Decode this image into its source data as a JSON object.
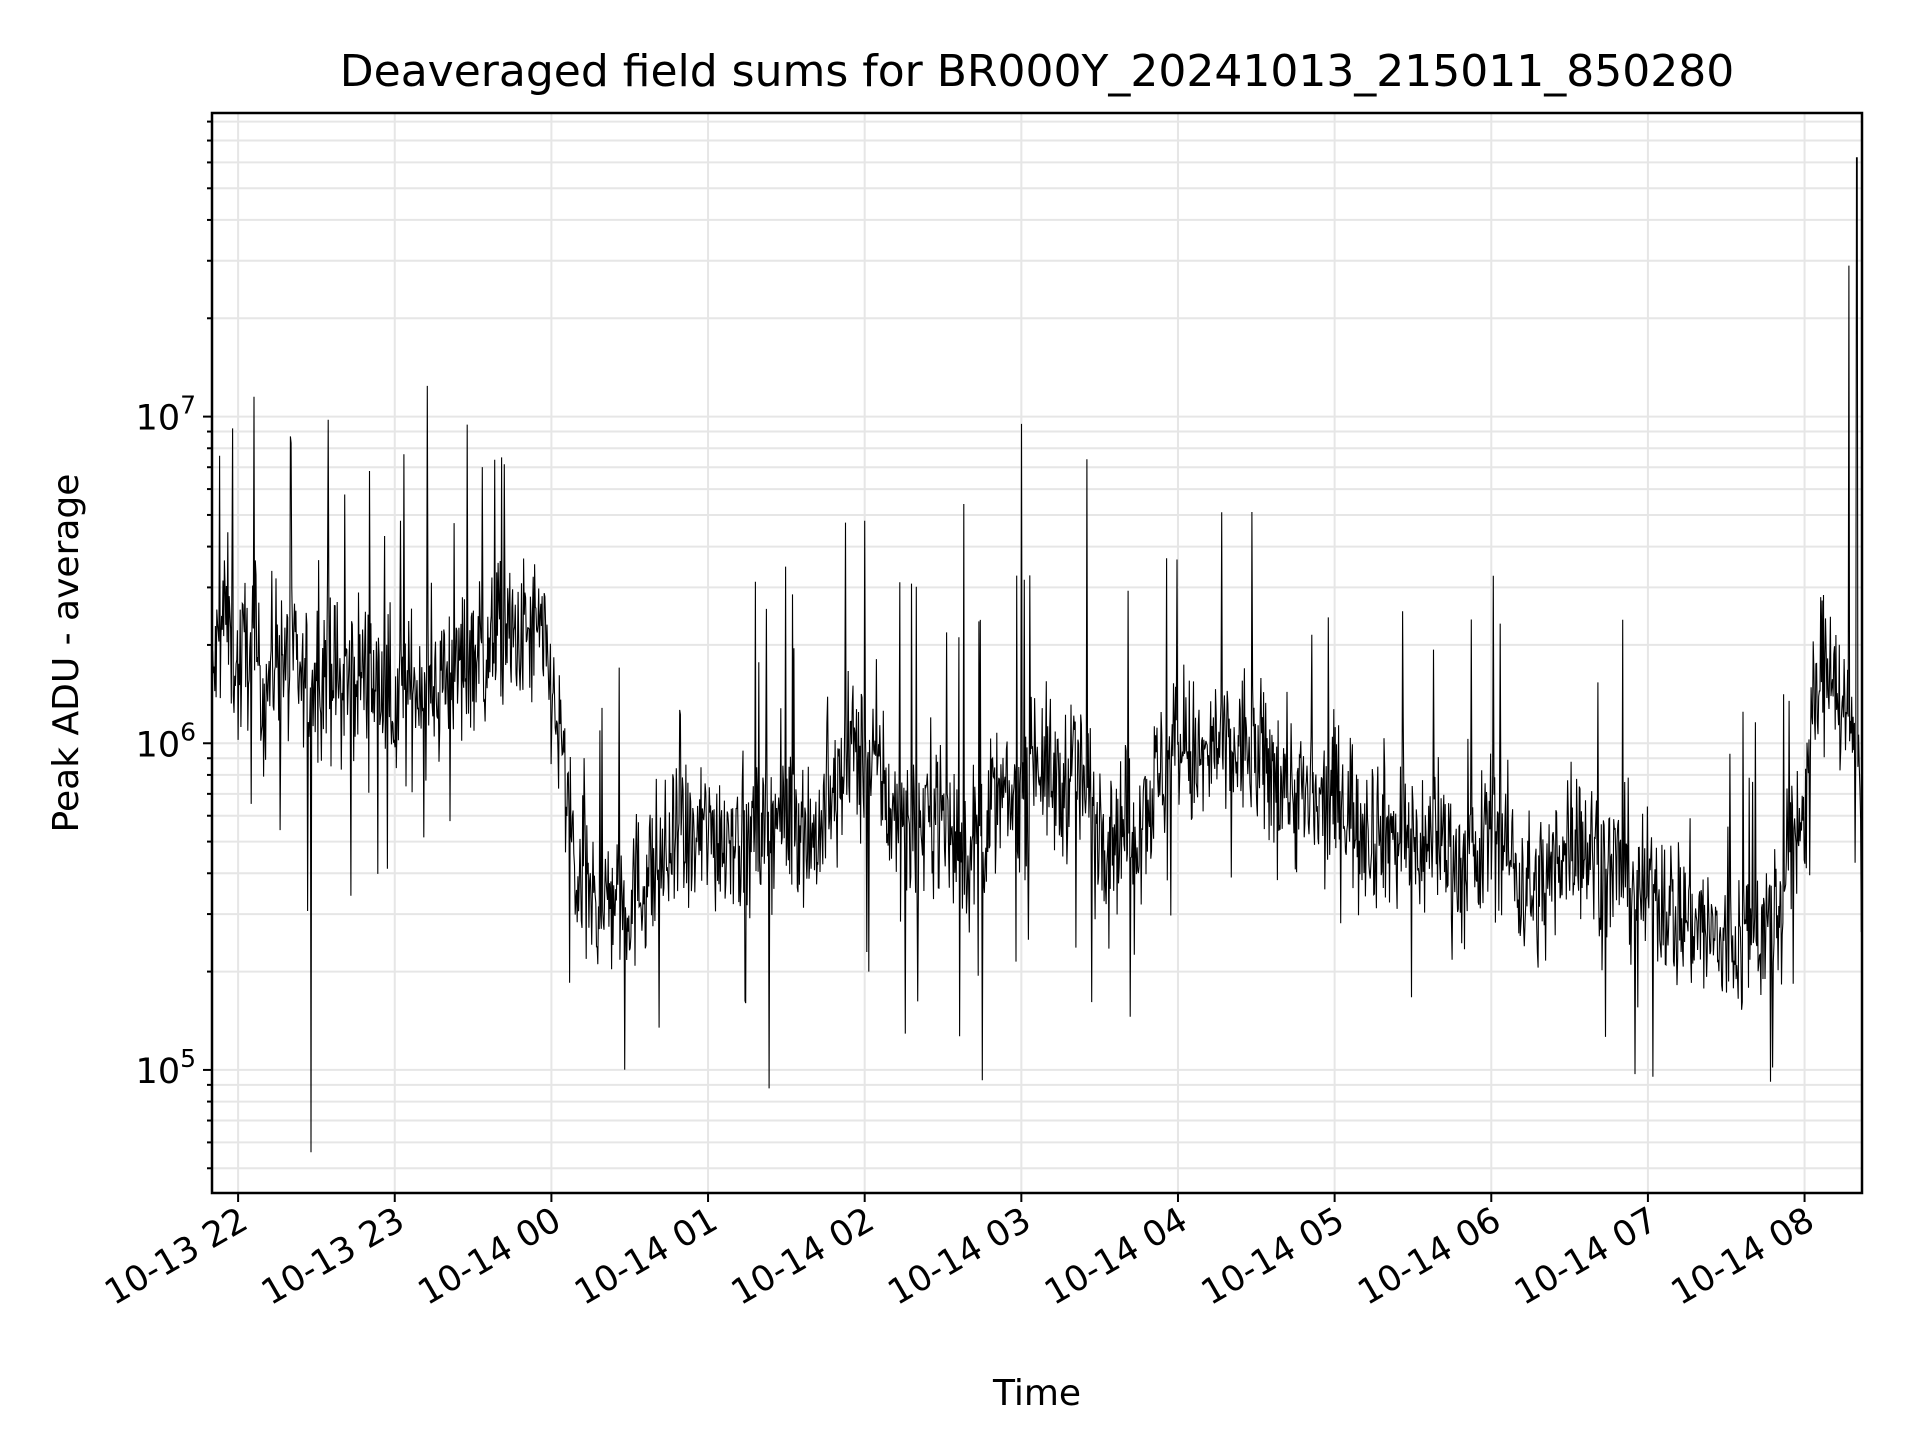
{
  "chart_data": {
    "type": "line",
    "title": "Deaveraged field sums for BR000Y_20241013_215011_850280",
    "xlabel": "Time",
    "ylabel": "Peak ADU - average",
    "y_scale": "log",
    "x_range": [
      "2024-10-13 21:50",
      "2024-10-14 08:22"
    ],
    "ylim": [
      42000,
      85000000
    ],
    "grid": "on (major and minor)",
    "x_ticks": [
      {
        "value": "2024-10-13 22:00",
        "label": "10-13 22"
      },
      {
        "value": "2024-10-13 23:00",
        "label": "10-13 23"
      },
      {
        "value": "2024-10-14 00:00",
        "label": "10-14 00"
      },
      {
        "value": "2024-10-14 01:00",
        "label": "10-14 01"
      },
      {
        "value": "2024-10-14 02:00",
        "label": "10-14 02"
      },
      {
        "value": "2024-10-14 03:00",
        "label": "10-14 03"
      },
      {
        "value": "2024-10-14 04:00",
        "label": "10-14 04"
      },
      {
        "value": "2024-10-14 05:00",
        "label": "10-14 05"
      },
      {
        "value": "2024-10-14 06:00",
        "label": "10-14 06"
      },
      {
        "value": "2024-10-14 07:00",
        "label": "10-14 07"
      },
      {
        "value": "2024-10-14 08:00",
        "label": "10-14 08"
      }
    ],
    "y_ticks": [
      {
        "value": 100000,
        "base": "10",
        "exp": "5"
      },
      {
        "value": 1000000,
        "base": "10",
        "exp": "6"
      },
      {
        "value": 10000000,
        "base": "10",
        "exp": "7"
      }
    ],
    "series": [
      {
        "color": "#000000",
        "x": [
          "2024-10-13 21:50",
          "2024-10-13 21:55",
          "2024-10-13 22:00",
          "2024-10-13 22:05",
          "2024-10-13 22:10",
          "2024-10-13 22:15",
          "2024-10-13 22:20",
          "2024-10-13 22:25",
          "2024-10-13 22:30",
          "2024-10-13 22:35",
          "2024-10-13 22:40",
          "2024-10-13 22:45",
          "2024-10-13 22:50",
          "2024-10-13 22:55",
          "2024-10-13 23:00",
          "2024-10-13 23:05",
          "2024-10-13 23:10",
          "2024-10-13 23:15",
          "2024-10-13 23:20",
          "2024-10-13 23:25",
          "2024-10-13 23:30",
          "2024-10-13 23:35",
          "2024-10-13 23:40",
          "2024-10-13 23:45",
          "2024-10-13 23:50",
          "2024-10-13 23:55",
          "2024-10-14 00:00",
          "2024-10-14 00:05",
          "2024-10-14 00:10",
          "2024-10-14 00:15",
          "2024-10-14 00:20",
          "2024-10-14 00:25",
          "2024-10-14 00:30",
          "2024-10-14 00:35",
          "2024-10-14 00:40",
          "2024-10-14 00:45",
          "2024-10-14 00:50",
          "2024-10-14 00:55",
          "2024-10-14 01:00",
          "2024-10-14 01:05",
          "2024-10-14 01:10",
          "2024-10-14 01:15",
          "2024-10-14 01:20",
          "2024-10-14 01:25",
          "2024-10-14 01:30",
          "2024-10-14 01:35",
          "2024-10-14 01:40",
          "2024-10-14 01:45",
          "2024-10-14 01:50",
          "2024-10-14 01:55",
          "2024-10-14 02:00",
          "2024-10-14 02:05",
          "2024-10-14 02:10",
          "2024-10-14 02:15",
          "2024-10-14 02:20",
          "2024-10-14 02:25",
          "2024-10-14 02:30",
          "2024-10-14 02:35",
          "2024-10-14 02:40",
          "2024-10-14 02:45",
          "2024-10-14 02:50",
          "2024-10-14 02:55",
          "2024-10-14 03:00",
          "2024-10-14 03:05",
          "2024-10-14 03:10",
          "2024-10-14 03:15",
          "2024-10-14 03:20",
          "2024-10-14 03:25",
          "2024-10-14 03:30",
          "2024-10-14 03:35",
          "2024-10-14 03:40",
          "2024-10-14 03:45",
          "2024-10-14 03:50",
          "2024-10-14 03:55",
          "2024-10-14 04:00",
          "2024-10-14 04:05",
          "2024-10-14 04:10",
          "2024-10-14 04:15",
          "2024-10-14 04:20",
          "2024-10-14 04:25",
          "2024-10-14 04:30",
          "2024-10-14 04:35",
          "2024-10-14 04:40",
          "2024-10-14 04:45",
          "2024-10-14 04:50",
          "2024-10-14 04:55",
          "2024-10-14 05:00",
          "2024-10-14 05:05",
          "2024-10-14 05:10",
          "2024-10-14 05:15",
          "2024-10-14 05:20",
          "2024-10-14 05:25",
          "2024-10-14 05:30",
          "2024-10-14 05:35",
          "2024-10-14 05:40",
          "2024-10-14 05:45",
          "2024-10-14 05:50",
          "2024-10-14 05:55",
          "2024-10-14 06:00",
          "2024-10-14 06:05",
          "2024-10-14 06:10",
          "2024-10-14 06:15",
          "2024-10-14 06:20",
          "2024-10-14 06:25",
          "2024-10-14 06:30",
          "2024-10-14 06:35",
          "2024-10-14 06:40",
          "2024-10-14 06:45",
          "2024-10-14 06:50",
          "2024-10-14 06:55",
          "2024-10-14 07:00",
          "2024-10-14 07:05",
          "2024-10-14 07:10",
          "2024-10-14 07:15",
          "2024-10-14 07:20",
          "2024-10-14 07:25",
          "2024-10-14 07:30",
          "2024-10-14 07:35",
          "2024-10-14 07:40",
          "2024-10-14 07:45",
          "2024-10-14 07:50",
          "2024-10-14 07:55",
          "2024-10-14 08:00",
          "2024-10-14 08:05",
          "2024-10-14 08:10",
          "2024-10-14 08:15",
          "2024-10-14 08:20"
        ],
        "y": [
          1500000,
          2600000,
          1600000,
          2200000,
          1400000,
          2000000,
          1700000,
          1500000,
          1600000,
          1800000,
          1400000,
          1700000,
          1600000,
          1500000,
          1300000,
          1400000,
          1600000,
          1500000,
          1600000,
          1700000,
          2000000,
          1800000,
          2200000,
          2000000,
          2100000,
          2200000,
          1500000,
          800000,
          360000,
          330000,
          320000,
          350000,
          330000,
          380000,
          420000,
          450000,
          500000,
          480000,
          550000,
          520000,
          560000,
          480000,
          520000,
          600000,
          580000,
          620000,
          500000,
          600000,
          700000,
          1000000,
          800000,
          900000,
          600000,
          550000,
          500000,
          700000,
          600000,
          500000,
          450000,
          550000,
          650000,
          650000,
          700000,
          1000000,
          800000,
          700000,
          900000,
          700000,
          600000,
          550000,
          550000,
          600000,
          700000,
          850000,
          1000000,
          900000,
          850000,
          1000000,
          900000,
          1000000,
          900000,
          800000,
          850000,
          700000,
          650000,
          600000,
          700000,
          650000,
          600000,
          550000,
          550000,
          500000,
          500000,
          480000,
          550000,
          450000,
          400000,
          420000,
          600000,
          500000,
          400000,
          350000,
          350000,
          450000,
          550000,
          500000,
          450000,
          400000,
          420000,
          380000,
          350000,
          350000,
          300000,
          300000,
          280000,
          250000,
          230000,
          250000,
          270000,
          280000,
          300000,
          450000,
          700000,
          1500000,
          2000000,
          1200000,
          1000000
        ],
        "spikes_max": [
          {
            "x": "2024-10-13 21:58",
            "y": 9200000
          },
          {
            "x": "2024-10-13 22:06",
            "y": 11500000
          },
          {
            "x": "2024-10-13 22:20",
            "y": 8700000
          },
          {
            "x": "2024-10-13 23:41",
            "y": 7500000
          },
          {
            "x": "2024-10-14 02:00",
            "y": 4800000
          },
          {
            "x": "2024-10-14 02:38",
            "y": 5400000
          },
          {
            "x": "2024-10-14 03:00",
            "y": 9500000
          },
          {
            "x": "2024-10-14 03:25",
            "y": 7400000
          },
          {
            "x": "2024-10-14 08:17",
            "y": 29000000
          },
          {
            "x": "2024-10-14 08:20",
            "y": 62000000
          }
        ],
        "spikes_min": [
          {
            "x": "2024-10-13 22:28",
            "y": 56000
          },
          {
            "x": "2024-10-14 02:45",
            "y": 93000
          },
          {
            "x": "2024-10-14 07:47",
            "y": 92000
          }
        ]
      }
    ]
  }
}
